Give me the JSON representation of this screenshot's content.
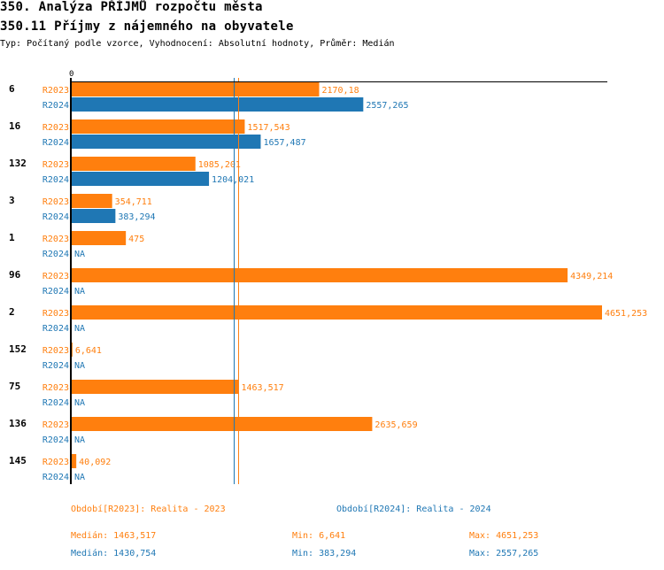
{
  "title": "350. Analýza PŘÍJMŮ rozpočtu města",
  "subtitle": "350.11 Příjmy z nájemného na obyvatele",
  "info": "Typ: Počítaný podle vzorce, Vyhodnocení: Absolutní hodnoty, Průměr: Medián",
  "colors": {
    "R2023": "#ff7f0e",
    "R2024": "#1f77b4"
  },
  "chart_data": {
    "type": "bar",
    "orientation": "horizontal",
    "axis_tick": "0",
    "categories": [
      "6",
      "16",
      "132",
      "3",
      "1",
      "96",
      "2",
      "152",
      "75",
      "136",
      "145"
    ],
    "series": [
      {
        "name": "R2023",
        "values": [
          2170.18,
          1517.543,
          1085.201,
          354.711,
          475,
          4349.214,
          4651.253,
          6.641,
          1463.517,
          2635.659,
          40.092
        ],
        "labels": [
          "2170,18",
          "1517,543",
          "1085,201",
          "354,711",
          "475",
          "4349,214",
          "4651,253",
          "6,641",
          "1463,517",
          "2635,659",
          "40,092"
        ]
      },
      {
        "name": "R2024",
        "values": [
          2557.265,
          1657.487,
          1204.021,
          383.294,
          null,
          null,
          null,
          null,
          null,
          null,
          null
        ],
        "labels": [
          "2557,265",
          "1657,487",
          "1204,021",
          "383,294",
          "NA",
          "NA",
          "NA",
          "NA",
          "NA",
          "NA",
          "NA"
        ]
      }
    ],
    "median_lines": {
      "R2023": 1463.517,
      "R2024": 1430.754
    }
  },
  "legend": {
    "r2023": "Období[R2023]: Realita - 2023",
    "r2024": "Období[R2024]: Realita - 2024",
    "stats2023": {
      "median": "Medián: 1463,517",
      "min": "Min: 6,641",
      "max": "Max: 4651,253"
    },
    "stats2024": {
      "median": "Medián: 1430,754",
      "min": "Min: 383,294",
      "max": "Max: 2557,265"
    }
  }
}
